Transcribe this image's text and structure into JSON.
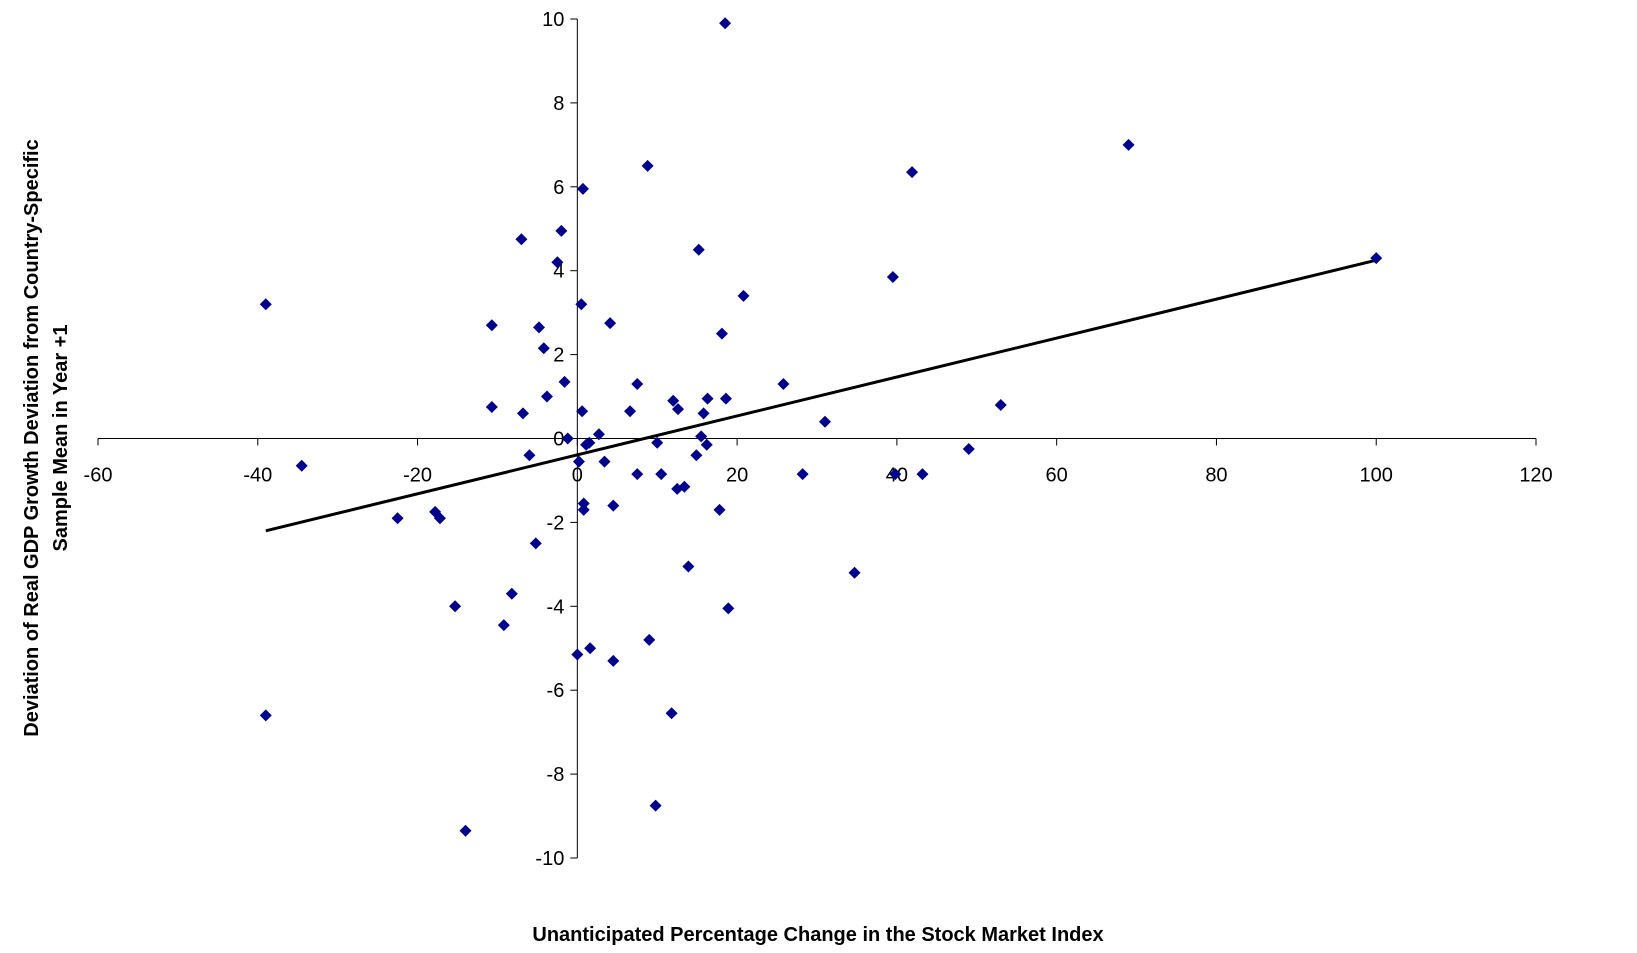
{
  "chart_data": {
    "type": "scatter",
    "title": "",
    "xlabel": "Unanticipated Percentage Change in the Stock Market Index",
    "ylabel_lines": [
      "Deviation of Real GDP Growth Deviation from Country-Specific",
      "Sample Mean in Year +1"
    ],
    "xlim": [
      -60,
      120
    ],
    "ylim": [
      -10,
      10
    ],
    "x_ticks": [
      -60,
      -40,
      -20,
      0,
      20,
      40,
      60,
      80,
      100,
      120
    ],
    "y_ticks": [
      -10,
      -8,
      -6,
      -4,
      -2,
      0,
      2,
      4,
      6,
      8,
      10
    ],
    "grid": false,
    "legend": "none",
    "marker": "diamond",
    "point_color": "#00008B",
    "line_color": "#000000",
    "series": [
      {
        "points": [
          [
            -39.0,
            3.2
          ],
          [
            -34.5,
            -0.65
          ],
          [
            -22.5,
            -1.9
          ],
          [
            -39.0,
            -6.6
          ],
          [
            -17.8,
            -1.75
          ],
          [
            -17.2,
            -1.9
          ],
          [
            -15.3,
            -4.0
          ],
          [
            -14.0,
            -9.35
          ],
          [
            -10.7,
            2.7
          ],
          [
            -10.7,
            0.75
          ],
          [
            -9.2,
            -4.45
          ],
          [
            -8.2,
            -3.7
          ],
          [
            -7.0,
            4.75
          ],
          [
            -6.8,
            0.6
          ],
          [
            -6.0,
            -0.4
          ],
          [
            -5.2,
            -2.5
          ],
          [
            -4.8,
            2.65
          ],
          [
            -4.2,
            2.15
          ],
          [
            -3.8,
            1.0
          ],
          [
            -2.5,
            4.2
          ],
          [
            -2.0,
            4.95
          ],
          [
            -1.6,
            1.35
          ],
          [
            -1.2,
            0.0
          ],
          [
            0.2,
            -0.55
          ],
          [
            0.5,
            3.2
          ],
          [
            0.6,
            0.65
          ],
          [
            0.8,
            -1.55
          ],
          [
            0.8,
            -1.7
          ],
          [
            0.7,
            5.95
          ],
          [
            1.1,
            -0.15
          ],
          [
            1.5,
            -0.1
          ],
          [
            1.6,
            -5.0
          ],
          [
            0.0,
            -5.15
          ],
          [
            2.7,
            0.1
          ],
          [
            3.4,
            -0.55
          ],
          [
            4.1,
            2.75
          ],
          [
            4.5,
            -1.6
          ],
          [
            4.5,
            -5.3
          ],
          [
            6.6,
            0.65
          ],
          [
            7.5,
            1.3
          ],
          [
            7.5,
            -0.85
          ],
          [
            8.8,
            6.5
          ],
          [
            9.0,
            -4.8
          ],
          [
            9.8,
            -8.75
          ],
          [
            10.0,
            -0.1
          ],
          [
            10.5,
            -0.85
          ],
          [
            11.8,
            -6.55
          ],
          [
            12.0,
            0.9
          ],
          [
            12.5,
            -1.2
          ],
          [
            12.6,
            0.7
          ],
          [
            13.4,
            -1.15
          ],
          [
            13.9,
            -3.05
          ],
          [
            14.9,
            -0.4
          ],
          [
            15.2,
            4.5
          ],
          [
            15.5,
            0.05
          ],
          [
            15.8,
            0.6
          ],
          [
            16.3,
            0.95
          ],
          [
            16.2,
            -0.15
          ],
          [
            17.8,
            -1.7
          ],
          [
            18.1,
            2.5
          ],
          [
            18.6,
            0.95
          ],
          [
            18.5,
            9.9
          ],
          [
            18.9,
            -4.05
          ],
          [
            20.8,
            3.4
          ],
          [
            25.8,
            1.3
          ],
          [
            28.2,
            -0.85
          ],
          [
            31.0,
            0.4
          ],
          [
            34.7,
            -3.2
          ],
          [
            39.5,
            3.85
          ],
          [
            39.8,
            -0.85
          ],
          [
            41.9,
            6.35
          ],
          [
            43.2,
            -0.85
          ],
          [
            49.0,
            -0.25
          ],
          [
            53.0,
            0.8
          ],
          [
            69.0,
            7.0
          ],
          [
            100.0,
            4.3
          ]
        ]
      },
      {
        "type": "line",
        "points": [
          [
            -39.0,
            -2.2
          ],
          [
            100.0,
            4.25
          ]
        ]
      }
    ]
  }
}
